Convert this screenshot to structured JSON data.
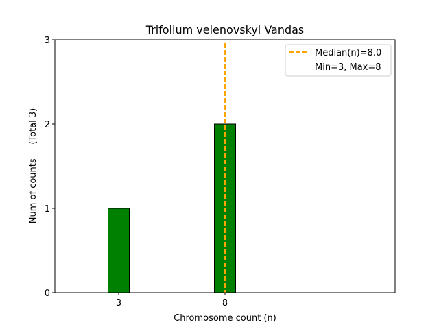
{
  "chart_data": {
    "type": "bar",
    "title": "Trifolium velenovskyi Vandas",
    "xlabel": "Chromosome count (n)",
    "ylabel": "Num of counts     (Total 3)",
    "x": [
      3,
      8
    ],
    "values": [
      1,
      2
    ],
    "xlim": [
      0,
      16
    ],
    "ylim": [
      0,
      3
    ],
    "xticks": [
      3,
      8
    ],
    "yticks": [
      0,
      1,
      2,
      3
    ],
    "bar_width": 1,
    "bar_color": "#008000",
    "bar_edge_color": "#000000",
    "median_line": {
      "x": 8.0,
      "color": "#ffa500",
      "style": "dashed"
    },
    "legend": {
      "placement": "top-right",
      "entries": [
        "Median(n)=8.0",
        "Min=3, Max=8"
      ]
    },
    "grid": false
  }
}
